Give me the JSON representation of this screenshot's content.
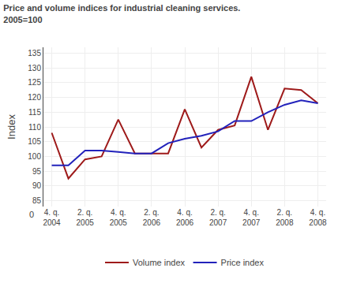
{
  "chart_data": {
    "type": "line",
    "title": "Price and volume indices for industrial cleaning services.",
    "subtitle": "2005=100",
    "y_label": "Index",
    "categories": [
      "4. q.\n2004",
      null,
      "2. q.\n2005",
      null,
      "4. q.\n2005",
      null,
      "2. q.\n2006",
      null,
      "4. q.\n2006",
      null,
      "2. q.\n2007",
      null,
      "4. q.\n2007",
      null,
      "2. q.\n2008",
      null,
      "4. q.\n2008"
    ],
    "series": [
      {
        "name": "Volume index",
        "color": "#9e1a1a",
        "values": [
          108,
          92.5,
          99,
          100,
          112.5,
          101,
          101,
          101,
          116,
          103,
          109,
          110.5,
          127,
          109,
          123,
          122.5,
          118
        ]
      },
      {
        "name": "Price index",
        "color": "#2222bb",
        "values": [
          97,
          97,
          102,
          102,
          101.5,
          101,
          101,
          104.5,
          106,
          107,
          108.5,
          112,
          112,
          115,
          117.5,
          119,
          118
        ]
      }
    ],
    "ylim": [
      83,
      137
    ],
    "yticks": [
      85,
      90,
      95,
      100,
      105,
      110,
      115,
      120,
      125,
      130,
      135
    ],
    "grid": true,
    "legend": "bottom",
    "annotations": [
      {
        "text": "0"
      }
    ]
  }
}
